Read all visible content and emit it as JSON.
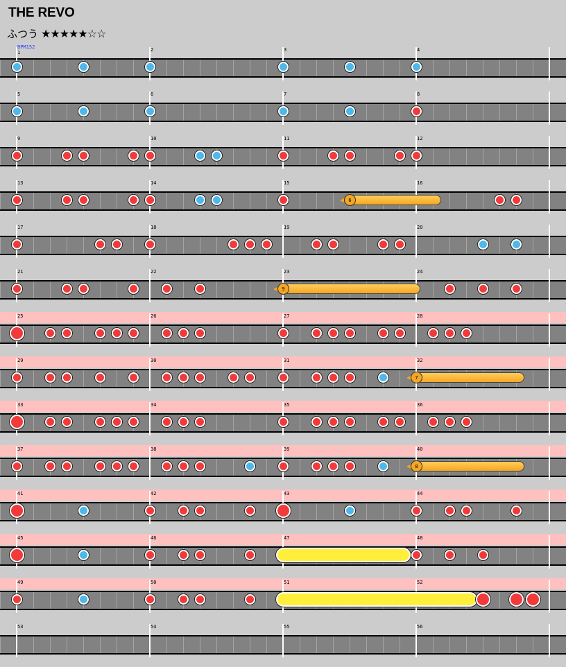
{
  "song_title": "THE REVO",
  "difficulty": {
    "label": "ふつう",
    "stars": "★★★★★☆☆"
  },
  "bpm_label": "BPM152",
  "colors": {
    "don": "#f23a3a",
    "ka": "#4eb8ea",
    "balloon": "#f5a623",
    "drumroll": "#ffef3a",
    "gogo": "#ffc0c0",
    "lane": "#828282",
    "background": "#cccccc"
  },
  "rows": [
    {
      "gogo": false,
      "measures": [
        "1",
        "2",
        "3",
        "4"
      ],
      "notes": [
        [
          "k",
          0,
          0
        ],
        [
          "k",
          0,
          4
        ],
        [
          "k",
          1,
          0
        ],
        [
          "k",
          2,
          0
        ],
        [
          "k",
          2,
          4
        ],
        [
          "k",
          3,
          0
        ]
      ]
    },
    {
      "gogo": false,
      "measures": [
        "5",
        "6",
        "7",
        "8"
      ],
      "notes": [
        [
          "k",
          0,
          0
        ],
        [
          "k",
          0,
          4
        ],
        [
          "k",
          1,
          0
        ],
        [
          "k",
          2,
          0
        ],
        [
          "k",
          2,
          4
        ],
        [
          "d",
          3,
          0
        ]
      ]
    },
    {
      "gogo": false,
      "measures": [
        "9",
        "10",
        "11",
        "12"
      ],
      "notes": [
        [
          "d",
          0,
          0
        ],
        [
          "d",
          0,
          3
        ],
        [
          "d",
          0,
          4
        ],
        [
          "d",
          0,
          7
        ],
        [
          "d",
          1,
          0
        ],
        [
          "k",
          1,
          3
        ],
        [
          "k",
          1,
          4
        ],
        [
          "d",
          2,
          0
        ],
        [
          "d",
          2,
          3
        ],
        [
          "d",
          2,
          4
        ],
        [
          "d",
          2,
          7
        ],
        [
          "d",
          3,
          0
        ]
      ]
    },
    {
      "gogo": false,
      "measures": [
        "13",
        "14",
        "15",
        "16"
      ],
      "notes": [
        [
          "d",
          0,
          0
        ],
        [
          "d",
          0,
          3
        ],
        [
          "d",
          0,
          4
        ],
        [
          "d",
          0,
          7
        ],
        [
          "d",
          1,
          0
        ],
        [
          "k",
          1,
          3
        ],
        [
          "k",
          1,
          4
        ],
        [
          "d",
          2,
          0
        ],
        [
          "d",
          3,
          5
        ],
        [
          "d",
          3,
          6
        ]
      ],
      "balloons": [
        {
          "count": "6",
          "start": [
            2,
            4
          ],
          "end": [
            3,
            1.25
          ]
        }
      ]
    },
    {
      "gogo": false,
      "measures": [
        "17",
        "18",
        "19",
        "20"
      ],
      "notes": [
        [
          "d",
          0,
          0
        ],
        [
          "d",
          0,
          5
        ],
        [
          "d",
          0,
          6
        ],
        [
          "d",
          1,
          0
        ],
        [
          "d",
          1,
          5
        ],
        [
          "d",
          1,
          6
        ],
        [
          "d",
          1,
          7
        ],
        [
          "d",
          2,
          2
        ],
        [
          "d",
          2,
          3
        ],
        [
          "d",
          2,
          6
        ],
        [
          "d",
          2,
          7
        ],
        [
          "k",
          3,
          4
        ],
        [
          "k",
          3,
          6
        ]
      ]
    },
    {
      "gogo": false,
      "measures": [
        "21",
        "22",
        "23",
        "24"
      ],
      "notes": [
        [
          "d",
          0,
          0
        ],
        [
          "d",
          0,
          3
        ],
        [
          "d",
          0,
          4
        ],
        [
          "d",
          0,
          7
        ],
        [
          "d",
          1,
          1
        ],
        [
          "d",
          1,
          3
        ],
        [
          "d",
          3,
          2
        ],
        [
          "d",
          3,
          4
        ],
        [
          "d",
          3,
          6
        ]
      ],
      "balloons": [
        {
          "count": "9",
          "start": [
            2,
            0
          ],
          "end": [
            3,
            0
          ]
        }
      ]
    },
    {
      "gogo": true,
      "measures": [
        "25",
        "26",
        "27",
        "28"
      ],
      "notes": [
        [
          "D",
          0,
          0
        ],
        [
          "d",
          0,
          2
        ],
        [
          "d",
          0,
          3
        ],
        [
          "d",
          0,
          5
        ],
        [
          "d",
          0,
          6
        ],
        [
          "d",
          0,
          7
        ],
        [
          "d",
          1,
          1
        ],
        [
          "d",
          1,
          2
        ],
        [
          "d",
          1,
          3
        ],
        [
          "d",
          2,
          0
        ],
        [
          "d",
          2,
          2
        ],
        [
          "d",
          2,
          3
        ],
        [
          "d",
          2,
          4
        ],
        [
          "d",
          2,
          6
        ],
        [
          "d",
          2,
          7
        ],
        [
          "d",
          3,
          1
        ],
        [
          "d",
          3,
          2
        ],
        [
          "d",
          3,
          3
        ]
      ]
    },
    {
      "gogo": true,
      "measures": [
        "29",
        "30",
        "31",
        "32"
      ],
      "notes": [
        [
          "d",
          0,
          0
        ],
        [
          "d",
          0,
          2
        ],
        [
          "d",
          0,
          3
        ],
        [
          "d",
          0,
          5
        ],
        [
          "d",
          0,
          7
        ],
        [
          "d",
          1,
          1
        ],
        [
          "d",
          1,
          2
        ],
        [
          "d",
          1,
          3
        ],
        [
          "d",
          1,
          5
        ],
        [
          "d",
          1,
          6
        ],
        [
          "d",
          2,
          0
        ],
        [
          "d",
          2,
          2
        ],
        [
          "d",
          2,
          3
        ],
        [
          "d",
          2,
          4
        ],
        [
          "k",
          2,
          6
        ]
      ],
      "balloons": [
        {
          "count": "7",
          "start": [
            3,
            0
          ],
          "end": [
            3,
            6.25
          ]
        }
      ]
    },
    {
      "gogo": true,
      "measures": [
        "33",
        "34",
        "35",
        "36"
      ],
      "notes": [
        [
          "D",
          0,
          0
        ],
        [
          "d",
          0,
          2
        ],
        [
          "d",
          0,
          3
        ],
        [
          "d",
          0,
          5
        ],
        [
          "d",
          0,
          6
        ],
        [
          "d",
          0,
          7
        ],
        [
          "d",
          1,
          1
        ],
        [
          "d",
          1,
          2
        ],
        [
          "d",
          1,
          3
        ],
        [
          "d",
          2,
          0
        ],
        [
          "d",
          2,
          2
        ],
        [
          "d",
          2,
          3
        ],
        [
          "d",
          2,
          4
        ],
        [
          "d",
          2,
          6
        ],
        [
          "d",
          2,
          7
        ],
        [
          "d",
          3,
          1
        ],
        [
          "d",
          3,
          2
        ],
        [
          "d",
          3,
          3
        ]
      ]
    },
    {
      "gogo": true,
      "measures": [
        "37",
        "38",
        "39",
        "40"
      ],
      "notes": [
        [
          "d",
          0,
          0
        ],
        [
          "d",
          0,
          2
        ],
        [
          "d",
          0,
          3
        ],
        [
          "d",
          0,
          5
        ],
        [
          "d",
          0,
          6
        ],
        [
          "d",
          0,
          7
        ],
        [
          "d",
          1,
          1
        ],
        [
          "d",
          1,
          2
        ],
        [
          "d",
          1,
          3
        ],
        [
          "k",
          1,
          6
        ],
        [
          "d",
          2,
          0
        ],
        [
          "d",
          2,
          2
        ],
        [
          "d",
          2,
          3
        ],
        [
          "d",
          2,
          4
        ],
        [
          "k",
          2,
          6
        ]
      ],
      "balloons": [
        {
          "count": "8",
          "start": [
            3,
            0
          ],
          "end": [
            3,
            6.25
          ]
        }
      ]
    },
    {
      "gogo": true,
      "measures": [
        "41",
        "42",
        "43",
        "44"
      ],
      "notes": [
        [
          "D",
          0,
          0
        ],
        [
          "k",
          0,
          4
        ],
        [
          "d",
          1,
          0
        ],
        [
          "d",
          1,
          2
        ],
        [
          "d",
          1,
          3
        ],
        [
          "d",
          1,
          6
        ],
        [
          "D",
          2,
          0
        ],
        [
          "k",
          2,
          4
        ],
        [
          "d",
          3,
          0
        ],
        [
          "d",
          3,
          2
        ],
        [
          "d",
          3,
          3
        ],
        [
          "d",
          3,
          6
        ]
      ]
    },
    {
      "gogo": true,
      "measures": [
        "45",
        "46",
        "47",
        "48"
      ],
      "notes": [
        [
          "D",
          0,
          0
        ],
        [
          "k",
          0,
          4
        ],
        [
          "d",
          1,
          0
        ],
        [
          "d",
          1,
          2
        ],
        [
          "d",
          1,
          3
        ],
        [
          "d",
          1,
          6
        ],
        [
          "d",
          3,
          0
        ],
        [
          "d",
          3,
          2
        ],
        [
          "d",
          3,
          4
        ]
      ],
      "rolls": [
        {
          "start": [
            2,
            0
          ],
          "end": [
            2,
            7.25
          ]
        }
      ]
    },
    {
      "gogo": true,
      "measures": [
        "49",
        "50",
        "51",
        "52"
      ],
      "notes": [
        [
          "d",
          0,
          0
        ],
        [
          "k",
          0,
          4
        ],
        [
          "d",
          1,
          0
        ],
        [
          "d",
          1,
          2
        ],
        [
          "d",
          1,
          3
        ],
        [
          "d",
          1,
          6
        ],
        [
          "D",
          3,
          4
        ],
        [
          "D",
          3,
          6
        ],
        [
          "D",
          3,
          7
        ]
      ],
      "rolls": [
        {
          "start": [
            2,
            0
          ],
          "end": [
            3,
            3.25
          ]
        }
      ]
    },
    {
      "gogo": false,
      "measures": [
        "53",
        "54",
        "55",
        "56"
      ],
      "notes": []
    }
  ]
}
